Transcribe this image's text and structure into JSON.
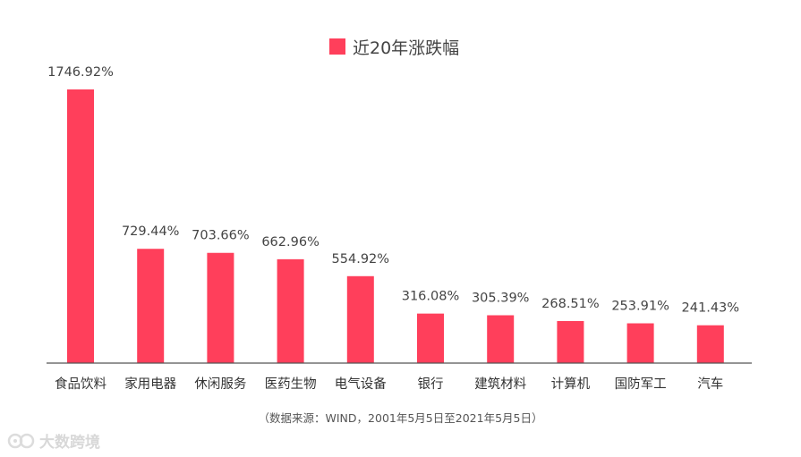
{
  "chart_data": {
    "type": "bar",
    "legend": "近20年涨跌幅",
    "categories": [
      "食品饮料",
      "家用电器",
      "休闲服务",
      "医药生物",
      "电气设备",
      "银行",
      "建筑材料",
      "计算机",
      "国防军工",
      "汽车"
    ],
    "values": [
      1746.92,
      729.44,
      703.66,
      662.96,
      554.92,
      316.08,
      305.39,
      268.51,
      253.91,
      241.43
    ],
    "value_labels": [
      "1746.92%",
      "729.44%",
      "703.66%",
      "662.96%",
      "554.92%",
      "316.08%",
      "305.39%",
      "268.51%",
      "253.91%",
      "241.43%"
    ],
    "ylim": [
      0,
      1800
    ],
    "grid": false,
    "legend_position": "top-center",
    "bar_color": "#ff3f5b"
  },
  "source": "（数据来源：WIND，2001年5月5日至2021年5月5日）",
  "watermark": {
    "text": "大数跨境",
    "icon": "ebrun-logo-icon"
  }
}
